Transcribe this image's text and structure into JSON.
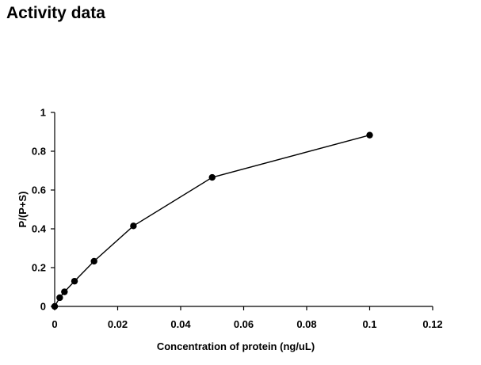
{
  "page": {
    "title": "Activity data"
  },
  "chart_data": {
    "type": "line",
    "title": "",
    "xlabel": "Concentration of protein (ng/uL)",
    "ylabel": "P/(P+S)",
    "xlim": [
      0,
      0.12
    ],
    "ylim": [
      0,
      1
    ],
    "x_ticks": [
      0,
      0.02,
      0.04,
      0.06,
      0.08,
      0.1,
      0.12
    ],
    "x_tick_labels": [
      "0",
      "0.02",
      "0.04",
      "0.06",
      "0.08",
      "0.1",
      "0.12"
    ],
    "y_ticks": [
      0,
      0.2,
      0.4,
      0.6,
      0.8,
      1
    ],
    "y_tick_labels": [
      "0",
      "0.2",
      "0.4",
      "0.6",
      "0.8",
      "1"
    ],
    "grid": false,
    "legend": "none",
    "series": [
      {
        "color": "#000000",
        "marker": "circle",
        "x": [
          0,
          0.0016,
          0.0031,
          0.0063,
          0.0125,
          0.025,
          0.05,
          0.1
        ],
        "y": [
          0,
          0.045,
          0.075,
          0.13,
          0.233,
          0.415,
          0.665,
          0.883
        ]
      }
    ]
  }
}
